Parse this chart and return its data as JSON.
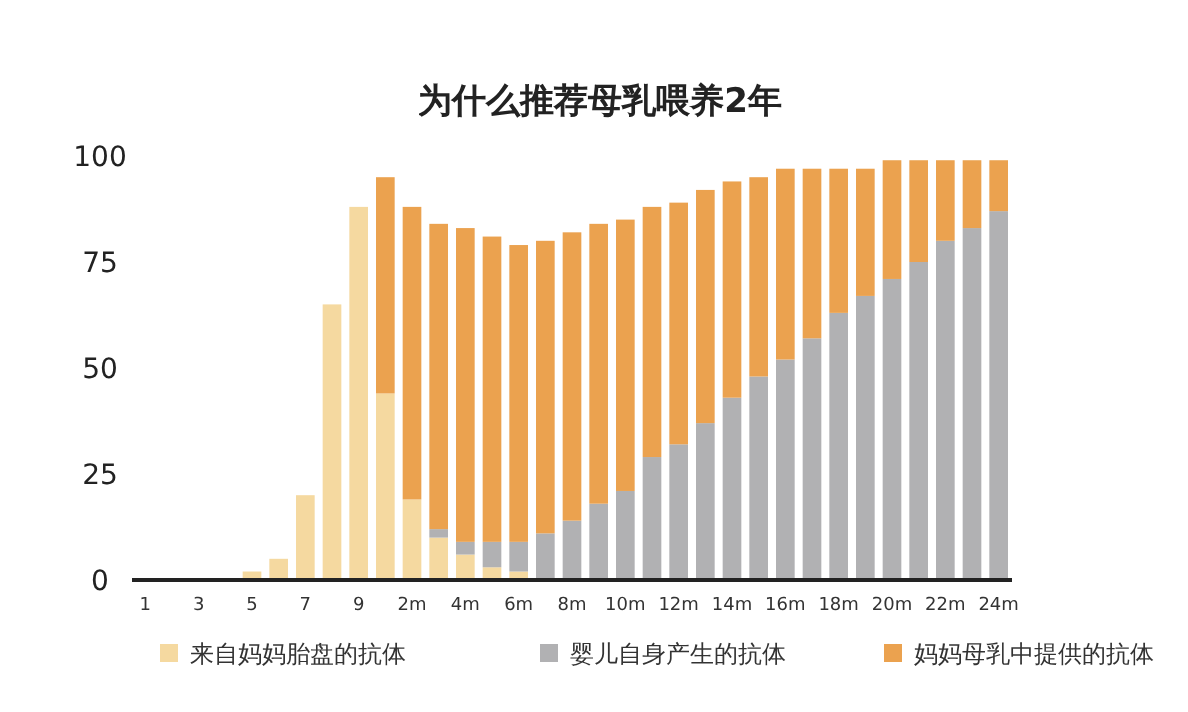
{
  "chart_data": {
    "type": "bar",
    "title": "为什么推荐母乳喂养2年",
    "categories": [
      "1",
      null,
      "3",
      null,
      "5",
      null,
      "7",
      null,
      "9",
      null,
      "2m",
      null,
      "4m",
      null,
      "6m",
      null,
      "8m",
      null,
      "10m",
      null,
      "12m",
      null,
      "14m",
      null,
      "16m",
      null,
      "18m",
      null,
      "20m",
      null,
      "22m",
      null,
      "24m"
    ],
    "stacked": true,
    "series": [
      {
        "name": "来自妈妈胎盘的抗体",
        "color": "#f5d9a0",
        "values": [
          null,
          null,
          null,
          null,
          2,
          5,
          20,
          65,
          88,
          44,
          19,
          10,
          6,
          3,
          2,
          null,
          null,
          null,
          null,
          null,
          null,
          null,
          null,
          null,
          null,
          null,
          null,
          null,
          null,
          null,
          null,
          null,
          null
        ]
      },
      {
        "name": "婴儿自身产生的抗体",
        "color": "#b1b1b3",
        "values": [
          null,
          null,
          null,
          null,
          null,
          null,
          null,
          null,
          null,
          null,
          null,
          2,
          3,
          6,
          7,
          11,
          14,
          18,
          21,
          29,
          32,
          37,
          43,
          48,
          52,
          57,
          63,
          67,
          71,
          75,
          80,
          83,
          87
        ]
      },
      {
        "name": "妈妈母乳中提供的抗体",
        "color": "#eba24f",
        "values": [
          null,
          null,
          null,
          null,
          null,
          null,
          null,
          null,
          null,
          51,
          69,
          72,
          74,
          72,
          70,
          69,
          68,
          66,
          64,
          59,
          57,
          55,
          51,
          47,
          45,
          40,
          34,
          30,
          28,
          24,
          19,
          16,
          12
        ]
      }
    ],
    "ylim": [
      0,
      100
    ],
    "yticks": [
      0,
      25,
      50,
      75,
      100
    ],
    "legend": "bottom"
  }
}
